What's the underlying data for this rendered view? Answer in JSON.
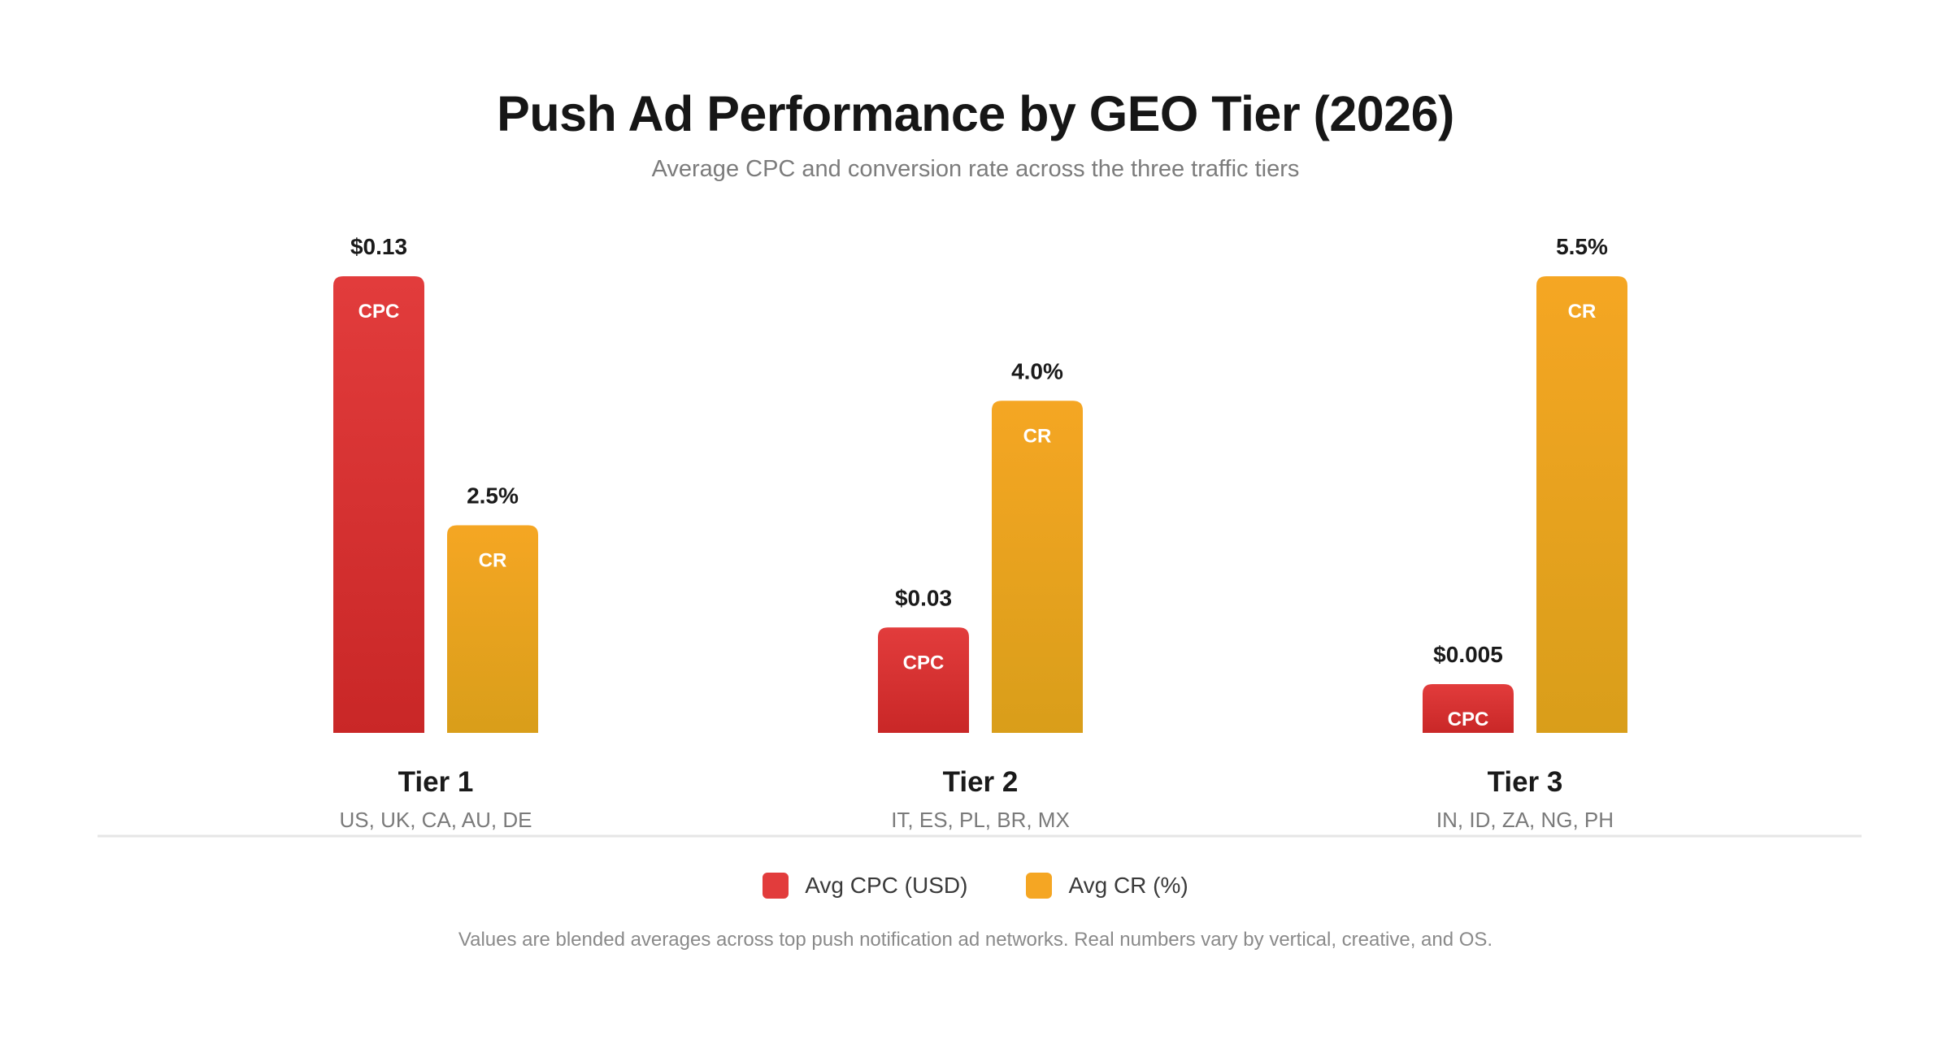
{
  "chart_data": {
    "type": "bar",
    "title": "Push Ad Performance by GEO Tier (2026)",
    "subtitle": "Average CPC and conversion rate across the three traffic tiers",
    "categories": [
      "Tier 1",
      "Tier 2",
      "Tier 3"
    ],
    "category_sublabels": [
      "US, UK, CA, AU, DE",
      "IT, ES, PL, BR, MX",
      "IN, ID, ZA, NG, PH"
    ],
    "series": [
      {
        "name": "Avg CPC (USD)",
        "bar_label": "CPC",
        "color": "#e23c3c",
        "color_bottom": "#c92727",
        "values": [
          0.13,
          0.03,
          0.005
        ],
        "value_labels": [
          "$0.13",
          "$0.03",
          "$0.005"
        ]
      },
      {
        "name": "Avg CR (%)",
        "bar_label": "CR",
        "color": "#f5a623",
        "color_bottom": "#d99e1a",
        "values": [
          2.5,
          4.0,
          5.5
        ],
        "value_labels": [
          "2.5%",
          "4.0%",
          "5.5%"
        ]
      }
    ],
    "grid": false,
    "legend_position": "bottom-center"
  },
  "footnote": "Values are blended averages across top push notification ad networks. Real numbers vary by vertical, creative, and OS."
}
